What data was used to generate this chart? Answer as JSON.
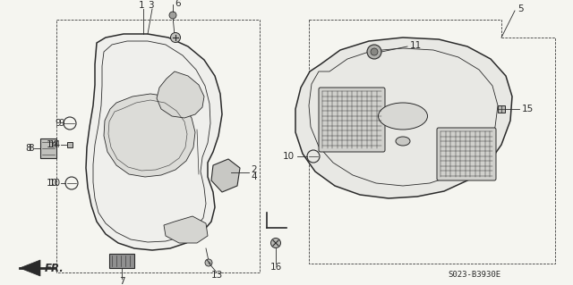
{
  "bg_color": "#f5f5f0",
  "line_color": "#2a2a2a",
  "part_code": "S023-B3930E",
  "fig_width": 6.4,
  "fig_height": 3.19,
  "dpi": 100
}
